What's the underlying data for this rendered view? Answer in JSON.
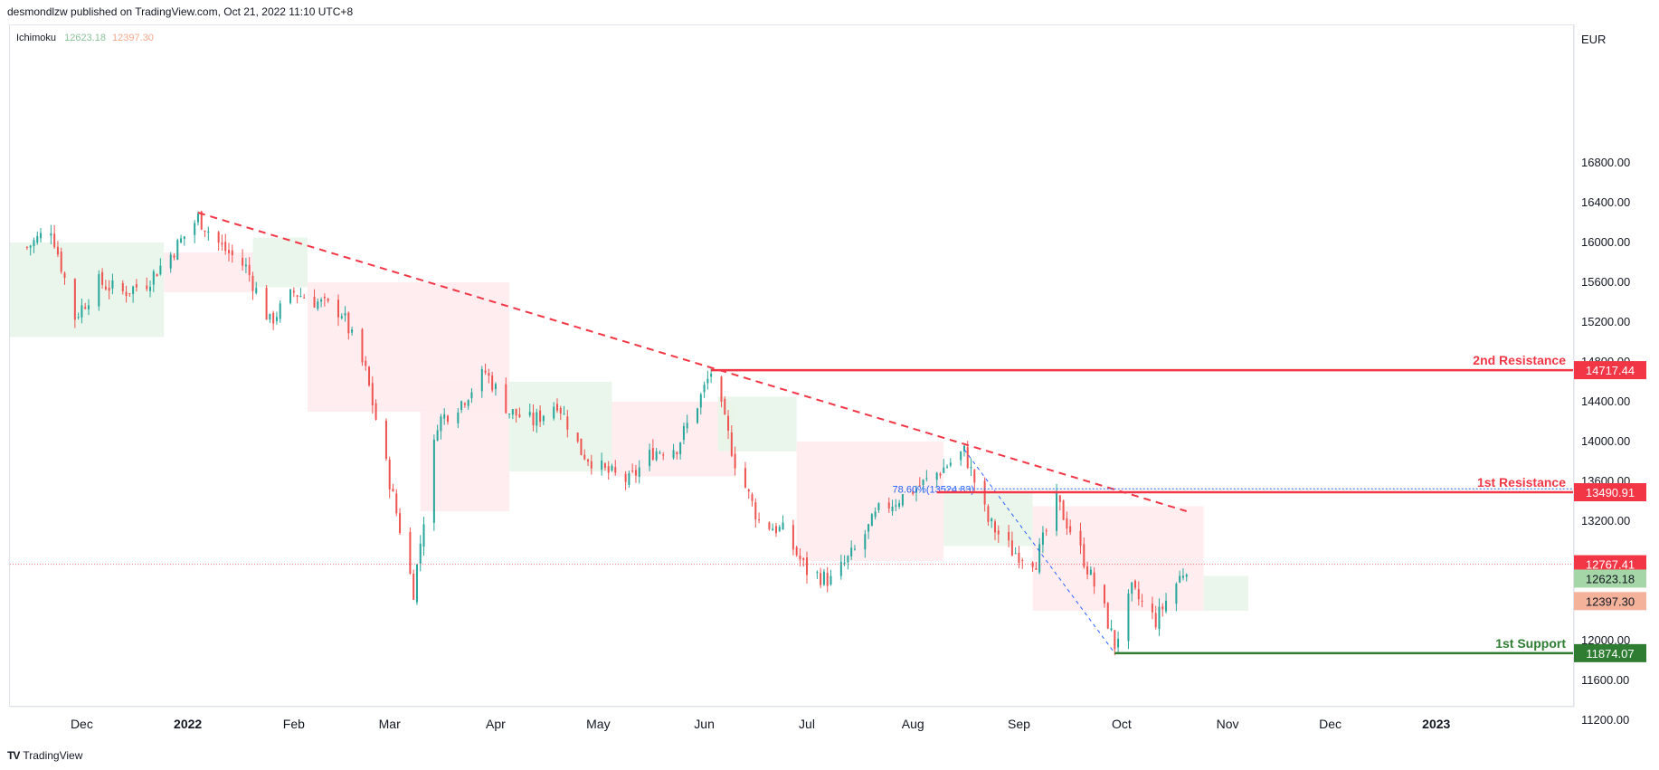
{
  "header": {
    "publisher_line": "desmondlzw published on TradingView.com, Oct 21, 2022 11:10 UTC+8"
  },
  "indicator": {
    "name": "Ichimoku",
    "value_green": "12623.18",
    "value_red": "12397.30"
  },
  "axis": {
    "currency": "EUR"
  },
  "footer": {
    "brand": "TradingView"
  },
  "colors": {
    "resistance": "#f23645",
    "support": "#2e7d32",
    "cloud_bull": "#e8f5e9",
    "cloud_bear": "#ffebee",
    "candle_up": "#26a69a",
    "candle_down": "#ef5350",
    "fib_line": "#2962ff"
  },
  "chart_data": {
    "type": "candlestick",
    "title": "",
    "y_ticks": [
      "16800.00",
      "16400.00",
      "16000.00",
      "15600.00",
      "15200.00",
      "14800.00",
      "14400.00",
      "14000.00",
      "13600.00",
      "13200.00",
      "12800.00",
      "12400.00",
      "12000.00",
      "11600.00",
      "11200.00"
    ],
    "x_ticks": [
      "Dec",
      "2022",
      "Feb",
      "Mar",
      "Apr",
      "May",
      "Jun",
      "Jul",
      "Aug",
      "Sep",
      "Oct",
      "Nov",
      "Dec",
      "2023"
    ],
    "ylim": [
      11000,
      17200
    ],
    "levels": [
      {
        "name": "2nd Resistance",
        "value": 14717.44,
        "label": "14717.44"
      },
      {
        "name": "1st Resistance",
        "value": 13490.91,
        "label": "13490.91"
      },
      {
        "name": "1st Support",
        "value": 11874.07,
        "label": "11874.07"
      }
    ],
    "last_price": {
      "value": 12767.41,
      "label": "12767.41"
    },
    "ichimoku_labels": {
      "span_a": "12623.18",
      "span_b": "12397.30"
    },
    "fib_label": "78.60%(13524.83)",
    "trendline": {
      "from": [
        "2022-01-04",
        16300
      ],
      "to": [
        "2022-10-20",
        13300
      ]
    },
    "close_path": [
      [
        "2021-11-15",
        15950
      ],
      [
        "2021-11-22",
        16150
      ],
      [
        "2021-11-29",
        15250
      ],
      [
        "2021-12-06",
        15600
      ],
      [
        "2021-12-13",
        15500
      ],
      [
        "2021-12-20",
        15600
      ],
      [
        "2021-12-27",
        15880
      ],
      [
        "2022-01-04",
        16250
      ],
      [
        "2022-01-11",
        15950
      ],
      [
        "2022-01-18",
        15750
      ],
      [
        "2022-01-25",
        15200
      ],
      [
        "2022-02-01",
        15500
      ],
      [
        "2022-02-08",
        15400
      ],
      [
        "2022-02-15",
        15300
      ],
      [
        "2022-02-22",
        14700
      ],
      [
        "2022-03-01",
        13600
      ],
      [
        "2022-03-08",
        12500
      ],
      [
        "2022-03-15",
        14200
      ],
      [
        "2022-03-22",
        14400
      ],
      [
        "2022-03-29",
        14700
      ],
      [
        "2022-04-05",
        14300
      ],
      [
        "2022-04-12",
        14200
      ],
      [
        "2022-04-19",
        14400
      ],
      [
        "2022-04-26",
        13900
      ],
      [
        "2022-05-03",
        13700
      ],
      [
        "2022-05-10",
        13600
      ],
      [
        "2022-05-17",
        13900
      ],
      [
        "2022-05-24",
        13950
      ],
      [
        "2022-05-31",
        14450
      ],
      [
        "2022-06-03",
        14700
      ],
      [
        "2022-06-10",
        13800
      ],
      [
        "2022-06-17",
        13200
      ],
      [
        "2022-06-24",
        13100
      ],
      [
        "2022-07-01",
        12700
      ],
      [
        "2022-07-08",
        12600
      ],
      [
        "2022-07-15",
        12900
      ],
      [
        "2022-07-22",
        13300
      ],
      [
        "2022-07-29",
        13450
      ],
      [
        "2022-08-05",
        13600
      ],
      [
        "2022-08-16",
        13900
      ],
      [
        "2022-08-23",
        13200
      ],
      [
        "2022-08-30",
        12900
      ],
      [
        "2022-09-06",
        12800
      ],
      [
        "2022-09-12",
        13400
      ],
      [
        "2022-09-19",
        12900
      ],
      [
        "2022-09-26",
        12300
      ],
      [
        "2022-09-29",
        11950
      ],
      [
        "2022-10-04",
        12500
      ],
      [
        "2022-10-11",
        12200
      ],
      [
        "2022-10-14",
        12400
      ],
      [
        "2022-10-20",
        12750
      ]
    ]
  }
}
